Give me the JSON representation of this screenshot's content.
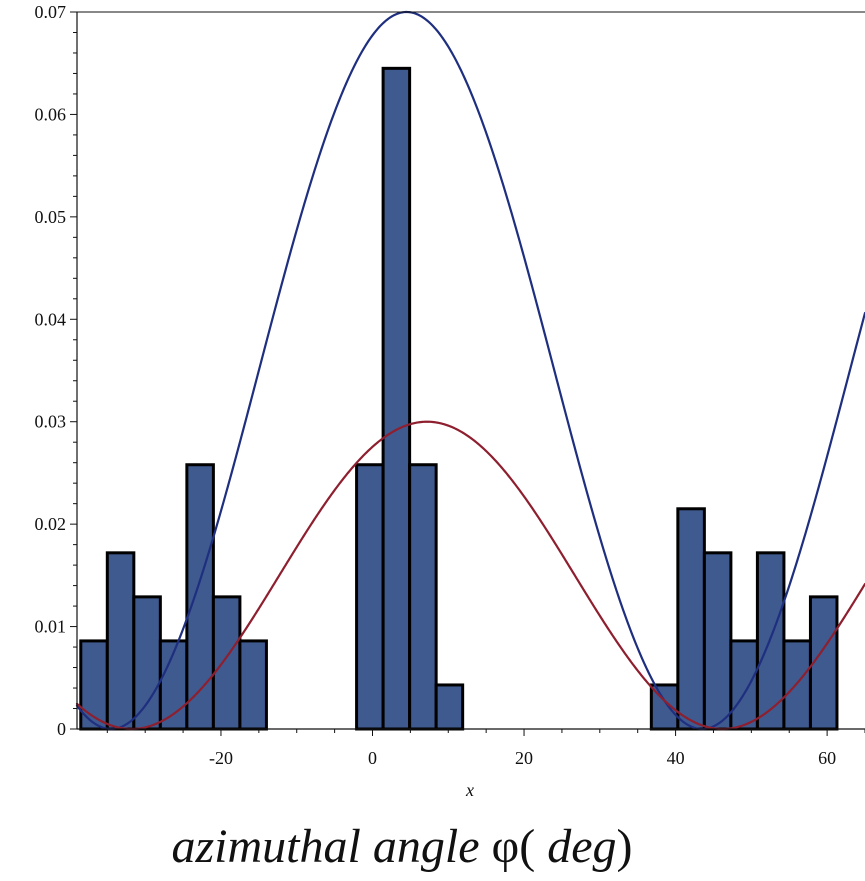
{
  "chart_data": {
    "type": "bar",
    "title": "",
    "xlabel": "x",
    "caption_parts": {
      "main": "azimuthal angle ",
      "phi": "φ",
      "open": "(",
      "unit": " deg",
      "close": ")"
    },
    "xlim": [
      -39,
      65
    ],
    "ylim": [
      0,
      0.07
    ],
    "x_ticks": [
      -20,
      0,
      20,
      40,
      60
    ],
    "y_ticks": [
      0,
      0.01,
      0.02,
      0.03,
      0.04,
      0.05,
      0.06,
      0.07
    ],
    "x_tick_labels": [
      "-20",
      "0",
      "20",
      "40",
      "60"
    ],
    "y_tick_labels": [
      "0",
      "0.01",
      "0.02",
      "0.03",
      "0.04",
      "0.05",
      "0.06",
      "0.07"
    ],
    "bars": [
      {
        "x0": -38.5,
        "x1": -35.0,
        "value": 0.0086
      },
      {
        "x0": -35.0,
        "x1": -31.5,
        "value": 0.0172
      },
      {
        "x0": -31.5,
        "x1": -28.0,
        "value": 0.0129
      },
      {
        "x0": -28.0,
        "x1": -24.5,
        "value": 0.0086
      },
      {
        "x0": -24.5,
        "x1": -21.0,
        "value": 0.0258
      },
      {
        "x0": -21.0,
        "x1": -17.5,
        "value": 0.0129
      },
      {
        "x0": -17.5,
        "x1": -14.0,
        "value": 0.0086
      },
      {
        "x0": -2.1,
        "x1": 1.4,
        "value": 0.0258
      },
      {
        "x0": 1.4,
        "x1": 4.9,
        "value": 0.0645
      },
      {
        "x0": 4.9,
        "x1": 8.4,
        "value": 0.0258
      },
      {
        "x0": 8.4,
        "x1": 11.9,
        "value": 0.0043
      },
      {
        "x0": 36.8,
        "x1": 40.3,
        "value": 0.0043
      },
      {
        "x0": 40.3,
        "x1": 43.8,
        "value": 0.0215
      },
      {
        "x0": 43.8,
        "x1": 47.3,
        "value": 0.0172
      },
      {
        "x0": 47.3,
        "x1": 50.8,
        "value": 0.0086
      },
      {
        "x0": 50.8,
        "x1": 54.3,
        "value": 0.0172
      },
      {
        "x0": 54.3,
        "x1": 57.8,
        "value": 0.0086
      },
      {
        "x0": 57.8,
        "x1": 61.3,
        "value": 0.0129
      }
    ],
    "series": [
      {
        "type": "line",
        "color": "#1f2f80",
        "function": "0.07 * cos^2((x - 4.5) * 90 / 39)",
        "amplitude": 0.07,
        "center": 4.5,
        "half_period": 39
      },
      {
        "type": "line",
        "color": "#8e1f2f",
        "function": "0.03 * cos^2((x - 7.2) * 90 / 39)",
        "amplitude": 0.03,
        "center": 7.2,
        "half_period": 39
      }
    ],
    "grid": false,
    "legend": "none",
    "bar_color": "#3f5a8f"
  }
}
